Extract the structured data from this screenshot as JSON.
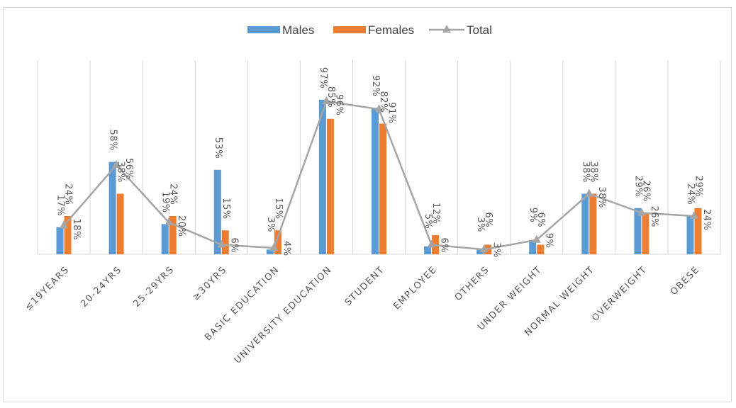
{
  "chart_data": {
    "type": "bar",
    "title": "",
    "xlabel": "",
    "ylabel": "",
    "ylim": [
      0,
      100
    ],
    "grid": "vertical",
    "legend_position": "top",
    "categories": [
      "≤19YEARS",
      "20-24YRS",
      "25-29YRS",
      "≥30YRS",
      "BASIC EDUCATION",
      "UNIVERSITY EDUCATION",
      "STUDENT",
      "EMPLOYEE",
      "OTHERS",
      "UNDER WEIGHT",
      "NORMAL WEIGHT",
      "OVERWEIGHT",
      "OBESE"
    ],
    "series": [
      {
        "name": "Males",
        "kind": "bar",
        "color": "#5b9bd5",
        "values": [
          17,
          58,
          19,
          53,
          3,
          97,
          92,
          5,
          3,
          9,
          38,
          29,
          24
        ],
        "labels": [
          "17%",
          "58%",
          "19%",
          "53%",
          "3%",
          "97%",
          "92%",
          "5%",
          "3%",
          "9%",
          "38%",
          "29%",
          "24%"
        ]
      },
      {
        "name": "Females",
        "kind": "bar",
        "color": "#ed7d31",
        "values": [
          24,
          38,
          24,
          15,
          15,
          85,
          82,
          12,
          6,
          6,
          38,
          26,
          29
        ],
        "labels": [
          "24%",
          "38%",
          "24%",
          "15%",
          "15%",
          "85%",
          "82%",
          "12%",
          "6%",
          "6%",
          "38%",
          "26%",
          "29%"
        ]
      },
      {
        "name": "Total",
        "kind": "line",
        "color": "#a5a5a5",
        "values": [
          18,
          56,
          20,
          6,
          4,
          96,
          91,
          6,
          3,
          9,
          38,
          26,
          24
        ],
        "labels": [
          "18%",
          "56%",
          "20%",
          "6%",
          "4%",
          "96%",
          "91%",
          "6%",
          "3%",
          "9%",
          "38%",
          "26%",
          "24%"
        ]
      }
    ]
  }
}
